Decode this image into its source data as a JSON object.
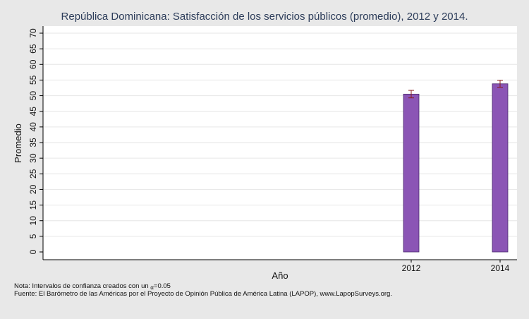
{
  "chart_data": {
    "type": "bar",
    "title": "República Dominicana: Satisfacción de los servicios públicos (promedio), 2012 y 2014.",
    "xlabel": "Año",
    "ylabel": "Promedio",
    "categories": [
      "2012",
      "2014"
    ],
    "values": [
      50.5,
      53.8
    ],
    "ci_low": [
      49.3,
      52.7
    ],
    "ci_high": [
      51.7,
      54.9
    ],
    "ylim": [
      0,
      70
    ],
    "yticks": [
      0,
      5,
      10,
      15,
      20,
      25,
      30,
      35,
      40,
      45,
      50,
      55,
      60,
      65,
      70
    ],
    "grid": true,
    "bar_color": "#8b55b5",
    "errorbar_color": "#8a1c1c"
  },
  "notes": {
    "note_prefix": "Nota: Intervalos de confianza creados con un ",
    "alpha_symbol": "α",
    "alpha_value": "=0.05",
    "source": "Fuente: El Barómetro de las Américas por el Proyecto de Opinión Pública de América Latina (LAPOP), www.LapopSurveys.org."
  }
}
